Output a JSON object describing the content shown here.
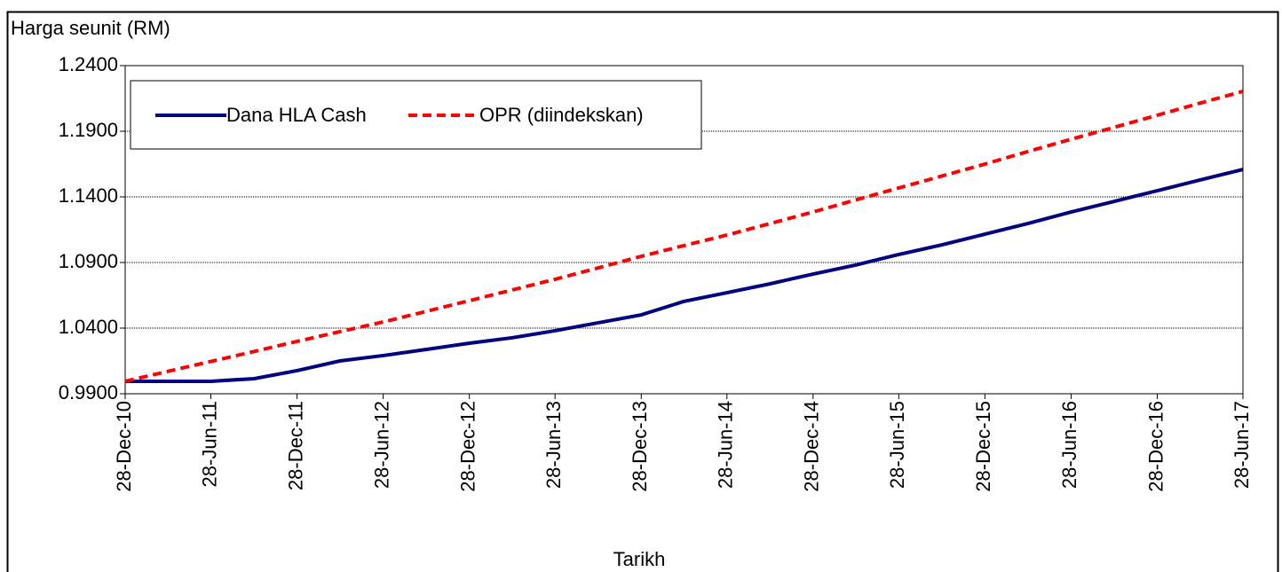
{
  "chart_data": {
    "type": "line",
    "ylabel": "Harga seunit (RM)",
    "xlabel": "Tarikh",
    "x": [
      "28-Dec-10",
      "28-Mar-11",
      "28-Jun-11",
      "28-Sep-11",
      "28-Dec-11",
      "28-Mar-12",
      "28-Jun-12",
      "28-Sep-12",
      "28-Dec-12",
      "28-Mar-13",
      "28-Jun-13",
      "28-Sep-13",
      "28-Dec-13",
      "28-Mar-14",
      "28-Jun-14",
      "28-Sep-14",
      "28-Dec-14",
      "28-Mar-15",
      "28-Jun-15",
      "28-Sep-15",
      "28-Dec-15",
      "28-Mar-16",
      "28-Jun-16",
      "28-Sep-16",
      "28-Dec-16",
      "28-Mar-17",
      "28-Jun-17"
    ],
    "series": [
      {
        "name": "Dana HLA Cash",
        "color": "#000080",
        "style": "solid",
        "values": [
          0.9995,
          0.9995,
          0.9995,
          1.0015,
          1.0076,
          1.015,
          1.0191,
          1.0238,
          1.0285,
          1.0326,
          1.038,
          1.0441,
          1.0501,
          1.0603,
          1.067,
          1.0738,
          1.0812,
          1.088,
          1.0961,
          1.1035,
          1.1116,
          1.1197,
          1.1285,
          1.1366,
          1.1447,
          1.1528,
          1.1609
        ]
      },
      {
        "name": "OPR (diindekskan)",
        "color": "#ff0000",
        "style": "dashed",
        "values": [
          0.9995,
          1.007,
          1.0146,
          1.0222,
          1.0299,
          1.0373,
          1.0447,
          1.0528,
          1.0609,
          1.069,
          1.0772,
          1.0859,
          1.0947,
          1.1028,
          1.1109,
          1.1197,
          1.1285,
          1.1376,
          1.1468,
          1.1559,
          1.165,
          1.1745,
          1.1839,
          1.193,
          1.2022,
          1.2113,
          1.2204
        ]
      }
    ],
    "xlim": [
      "28-Dec-10",
      "28-Jun-17"
    ],
    "xticks": [
      "28-Dec-10",
      "28-Jun-11",
      "28-Dec-11",
      "28-Jun-12",
      "28-Dec-12",
      "28-Jun-13",
      "28-Dec-13",
      "28-Jun-14",
      "28-Dec-14",
      "28-Jun-15",
      "28-Dec-15",
      "28-Jun-16",
      "28-Dec-16",
      "28-Jun-17"
    ],
    "ylim": [
      0.99,
      1.24
    ],
    "yticks": [
      {
        "value": 0.99,
        "label": "0.9900"
      },
      {
        "value": 1.04,
        "label": "1.0400"
      },
      {
        "value": 1.09,
        "label": "1.0900"
      },
      {
        "value": 1.14,
        "label": "1.1400"
      },
      {
        "value": 1.19,
        "label": "1.1900"
      },
      {
        "value": 1.24,
        "label": "1.2400"
      }
    ],
    "grid": true,
    "legend": "upper left"
  }
}
